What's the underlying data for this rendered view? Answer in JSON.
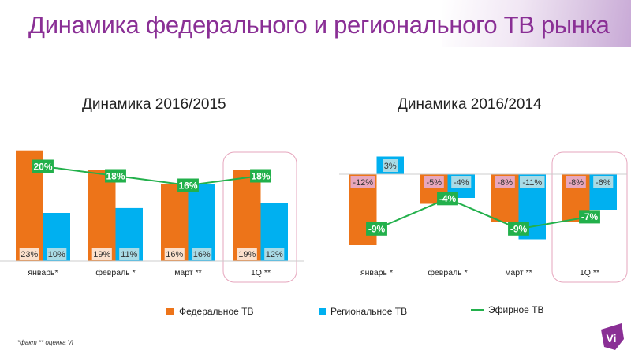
{
  "header": {
    "title": "Динамика федерального и регионального ТВ рынка"
  },
  "colors": {
    "federal": "#ed7419",
    "regional": "#00b0f0",
    "air": "#22b04b",
    "title": "#8a2f95",
    "highlight": "#e6a6bd"
  },
  "chart_data": [
    {
      "type": "bar",
      "title": "Динамика 2016/2015",
      "categories": [
        "январь*",
        "февраль *",
        "март **",
        "1Q **"
      ],
      "series": [
        {
          "name": "Федеральное ТВ",
          "values": [
            23,
            19,
            16,
            19
          ]
        },
        {
          "name": "Региональное ТВ",
          "values": [
            10,
            11,
            16,
            12
          ]
        },
        {
          "name": "Эфирное ТВ",
          "type": "line",
          "values": [
            20,
            18,
            16,
            18
          ]
        }
      ],
      "unit": "%",
      "highlighted_category": "1Q **"
    },
    {
      "type": "bar",
      "title": "Динамика 2016/2014",
      "categories": [
        "январь *",
        "февраль *",
        "март **",
        "1Q **"
      ],
      "series": [
        {
          "name": "Федеральное ТВ",
          "values": [
            -12,
            -5,
            -8,
            -8
          ]
        },
        {
          "name": "Региональное ТВ",
          "values": [
            3,
            -4,
            -11,
            -6
          ]
        },
        {
          "name": "Эфирное ТВ",
          "type": "line",
          "values": [
            -9,
            -4,
            -9,
            -7
          ]
        }
      ],
      "unit": "%",
      "highlighted_category": "1Q **"
    }
  ],
  "legend": [
    "Федеральное ТВ",
    "Региональное ТВ",
    "Эфирное ТВ"
  ],
  "footnote": "*факт ** оценка Vi",
  "logo": "Vi"
}
